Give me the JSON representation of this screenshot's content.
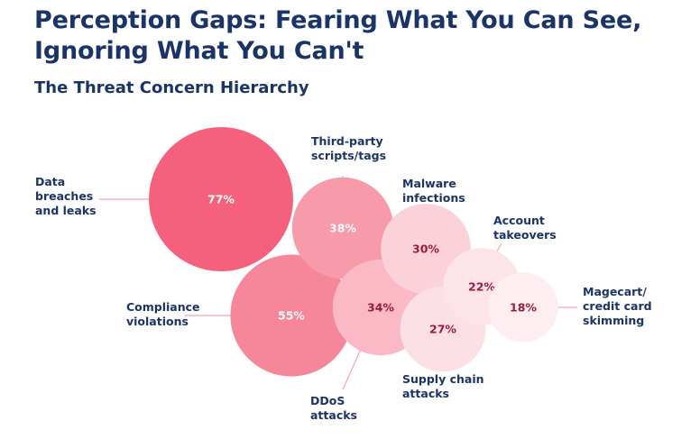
{
  "title_line1": "Perception Gaps: Fearing What You Can See,",
  "title_line2": "Ignoring What You Can't",
  "chart_data": {
    "type": "bubble",
    "subtitle": "The Threat Concern Hierarchy",
    "items": [
      {
        "label": [
          "Data",
          "breaches",
          "and leaks"
        ],
        "value": 77,
        "display": "77%",
        "color": "#f5617d",
        "text_color": "#ffffff"
      },
      {
        "label": [
          "Compliance",
          "violations"
        ],
        "value": 55,
        "display": "55%",
        "color": "#f6869a",
        "text_color": "#ffffff"
      },
      {
        "label": [
          "Third-party",
          "scripts/tags"
        ],
        "value": 38,
        "display": "38%",
        "color": "#f79aaa",
        "text_color": "#ffffff"
      },
      {
        "label": [
          "DDoS",
          "attacks"
        ],
        "value": 34,
        "display": "34%",
        "color": "#fab9c5",
        "text_color": "#9b1c3a"
      },
      {
        "label": [
          "Malware",
          "infections"
        ],
        "value": 30,
        "display": "30%",
        "color": "#fcd2da",
        "text_color": "#9b1c3a"
      },
      {
        "label": [
          "Supply chain",
          "attacks"
        ],
        "value": 27,
        "display": "27%",
        "color": "#fde0e6",
        "text_color": "#9b1c3a"
      },
      {
        "label": [
          "Account",
          "takeovers"
        ],
        "value": 22,
        "display": "22%",
        "color": "#fde4e9",
        "text_color": "#9b1c3a"
      },
      {
        "label": [
          "Magecart/",
          "credit card",
          "skimming"
        ],
        "value": 18,
        "display": "18%",
        "color": "#feeef1",
        "text_color": "#9b1c3a"
      }
    ],
    "leader_line_color": "#f4a3b3"
  }
}
